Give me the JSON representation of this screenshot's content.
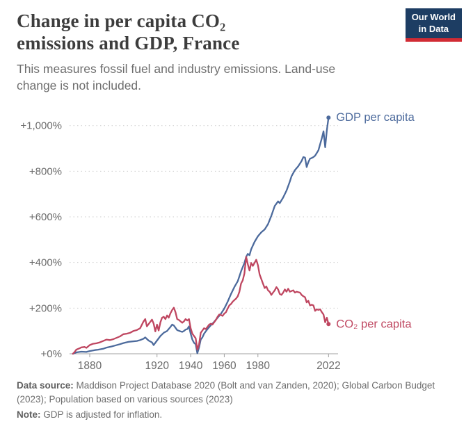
{
  "logo": {
    "line1": "Our World",
    "line2": "in Data",
    "bg": "#1d3d63",
    "stripe": "#d12b34"
  },
  "header": {
    "title_line1": "Change in per capita CO₂",
    "title_line2": "emissions and GDP, France",
    "subtitle_line1": "This measures fossil fuel and industry emissions. Land-use",
    "subtitle_line2": "change is not included."
  },
  "footer": {
    "source_label": "Data source:",
    "source_text": " Maddison Project Database 2020 (Bolt and van Zanden, 2020); Global Carbon Budget (2023); Population based on various sources (2023)",
    "note_label": "Note:",
    "note_text": " GDP is adjusted for inflation."
  },
  "chart_data": {
    "type": "line",
    "title": "Change in per capita CO₂ emissions and GDP, France",
    "xlabel": "",
    "ylabel": "",
    "grid": "horizontal-dotted",
    "legend": "inline-end-labels",
    "xlim": [
      1868,
      2026
    ],
    "ylim": [
      0,
      1060
    ],
    "yticks": [
      {
        "v": 0,
        "label": "+0%"
      },
      {
        "v": 200,
        "label": "+200%"
      },
      {
        "v": 400,
        "label": "+400%"
      },
      {
        "v": 600,
        "label": "+600%"
      },
      {
        "v": 800,
        "label": "+800%"
      },
      {
        "v": 1000,
        "label": "+1,000%"
      }
    ],
    "xticks": [
      {
        "v": 1880,
        "label": "1880"
      },
      {
        "v": 1920,
        "label": "1920"
      },
      {
        "v": 1940,
        "label": "1940"
      },
      {
        "v": 1960,
        "label": "1960"
      },
      {
        "v": 1980,
        "label": "1980"
      },
      {
        "v": 2022,
        "label": "2022"
      }
    ],
    "series": [
      {
        "name": "GDP per capita",
        "color": "#4c6a9c",
        "points": [
          [
            1870,
            0
          ],
          [
            1872,
            6
          ],
          [
            1875,
            9
          ],
          [
            1878,
            8
          ],
          [
            1880,
            12
          ],
          [
            1883,
            16
          ],
          [
            1885,
            18
          ],
          [
            1888,
            22
          ],
          [
            1890,
            27
          ],
          [
            1893,
            32
          ],
          [
            1895,
            36
          ],
          [
            1898,
            42
          ],
          [
            1900,
            47
          ],
          [
            1903,
            52
          ],
          [
            1905,
            54
          ],
          [
            1908,
            56
          ],
          [
            1910,
            60
          ],
          [
            1912,
            66
          ],
          [
            1913,
            72
          ],
          [
            1915,
            58
          ],
          [
            1917,
            50
          ],
          [
            1918,
            38
          ],
          [
            1919,
            48
          ],
          [
            1920,
            58
          ],
          [
            1922,
            78
          ],
          [
            1924,
            92
          ],
          [
            1926,
            100
          ],
          [
            1928,
            118
          ],
          [
            1929,
            128
          ],
          [
            1930,
            124
          ],
          [
            1932,
            104
          ],
          [
            1934,
            98
          ],
          [
            1935,
            96
          ],
          [
            1936,
            100
          ],
          [
            1937,
            106
          ],
          [
            1938,
            108
          ],
          [
            1939,
            120
          ],
          [
            1940,
            88
          ],
          [
            1941,
            62
          ],
          [
            1942,
            48
          ],
          [
            1943,
            42
          ],
          [
            1944,
            2
          ],
          [
            1945,
            28
          ],
          [
            1946,
            62
          ],
          [
            1947,
            72
          ],
          [
            1948,
            88
          ],
          [
            1949,
            98
          ],
          [
            1950,
            108
          ],
          [
            1952,
            125
          ],
          [
            1954,
            140
          ],
          [
            1956,
            158
          ],
          [
            1958,
            175
          ],
          [
            1960,
            198
          ],
          [
            1962,
            228
          ],
          [
            1964,
            262
          ],
          [
            1966,
            292
          ],
          [
            1968,
            318
          ],
          [
            1970,
            362
          ],
          [
            1972,
            398
          ],
          [
            1973,
            425
          ],
          [
            1974,
            438
          ],
          [
            1975,
            432
          ],
          [
            1976,
            458
          ],
          [
            1978,
            490
          ],
          [
            1980,
            515
          ],
          [
            1982,
            532
          ],
          [
            1984,
            545
          ],
          [
            1986,
            568
          ],
          [
            1988,
            605
          ],
          [
            1990,
            648
          ],
          [
            1992,
            668
          ],
          [
            1993,
            660
          ],
          [
            1995,
            685
          ],
          [
            1997,
            715
          ],
          [
            1999,
            755
          ],
          [
            2000,
            778
          ],
          [
            2002,
            805
          ],
          [
            2004,
            822
          ],
          [
            2006,
            845
          ],
          [
            2007,
            862
          ],
          [
            2008,
            860
          ],
          [
            2009,
            818
          ],
          [
            2010,
            840
          ],
          [
            2011,
            855
          ],
          [
            2012,
            858
          ],
          [
            2013,
            862
          ],
          [
            2014,
            868
          ],
          [
            2015,
            880
          ],
          [
            2016,
            892
          ],
          [
            2017,
            918
          ],
          [
            2018,
            945
          ],
          [
            2019,
            975
          ],
          [
            2020,
            905
          ],
          [
            2021,
            980
          ],
          [
            2022,
            1035
          ]
        ]
      },
      {
        "name": "CO₂ per capita",
        "color": "#bf4660",
        "points": [
          [
            1870,
            0
          ],
          [
            1871,
            8
          ],
          [
            1872,
            18
          ],
          [
            1874,
            24
          ],
          [
            1875,
            28
          ],
          [
            1877,
            30
          ],
          [
            1878,
            26
          ],
          [
            1880,
            38
          ],
          [
            1882,
            44
          ],
          [
            1884,
            46
          ],
          [
            1886,
            50
          ],
          [
            1888,
            56
          ],
          [
            1890,
            62
          ],
          [
            1892,
            60
          ],
          [
            1894,
            64
          ],
          [
            1896,
            70
          ],
          [
            1898,
            76
          ],
          [
            1900,
            86
          ],
          [
            1902,
            88
          ],
          [
            1904,
            92
          ],
          [
            1906,
            100
          ],
          [
            1908,
            104
          ],
          [
            1910,
            112
          ],
          [
            1912,
            142
          ],
          [
            1913,
            152
          ],
          [
            1914,
            120
          ],
          [
            1916,
            140
          ],
          [
            1917,
            150
          ],
          [
            1918,
            132
          ],
          [
            1919,
            98
          ],
          [
            1920,
            128
          ],
          [
            1921,
            102
          ],
          [
            1922,
            138
          ],
          [
            1923,
            158
          ],
          [
            1924,
            162
          ],
          [
            1925,
            152
          ],
          [
            1926,
            168
          ],
          [
            1927,
            158
          ],
          [
            1928,
            178
          ],
          [
            1929,
            192
          ],
          [
            1930,
            202
          ],
          [
            1931,
            182
          ],
          [
            1932,
            152
          ],
          [
            1933,
            148
          ],
          [
            1934,
            142
          ],
          [
            1935,
            136
          ],
          [
            1936,
            142
          ],
          [
            1937,
            152
          ],
          [
            1938,
            146
          ],
          [
            1939,
            152
          ],
          [
            1940,
            112
          ],
          [
            1941,
            88
          ],
          [
            1942,
            78
          ],
          [
            1943,
            68
          ],
          [
            1944,
            18
          ],
          [
            1945,
            42
          ],
          [
            1946,
            92
          ],
          [
            1947,
            102
          ],
          [
            1948,
            112
          ],
          [
            1949,
            108
          ],
          [
            1950,
            118
          ],
          [
            1951,
            128
          ],
          [
            1952,
            132
          ],
          [
            1953,
            128
          ],
          [
            1954,
            138
          ],
          [
            1955,
            148
          ],
          [
            1956,
            162
          ],
          [
            1957,
            172
          ],
          [
            1958,
            170
          ],
          [
            1959,
            166
          ],
          [
            1960,
            176
          ],
          [
            1961,
            182
          ],
          [
            1962,
            198
          ],
          [
            1963,
            212
          ],
          [
            1964,
            218
          ],
          [
            1965,
            228
          ],
          [
            1966,
            235
          ],
          [
            1967,
            242
          ],
          [
            1968,
            252
          ],
          [
            1969,
            272
          ],
          [
            1970,
            308
          ],
          [
            1971,
            322
          ],
          [
            1972,
            352
          ],
          [
            1973,
            425
          ],
          [
            1974,
            392
          ],
          [
            1975,
            365
          ],
          [
            1976,
            398
          ],
          [
            1977,
            385
          ],
          [
            1978,
            398
          ],
          [
            1979,
            412
          ],
          [
            1980,
            388
          ],
          [
            1981,
            348
          ],
          [
            1982,
            328
          ],
          [
            1983,
            308
          ],
          [
            1984,
            288
          ],
          [
            1985,
            295
          ],
          [
            1986,
            278
          ],
          [
            1987,
            272
          ],
          [
            1988,
            258
          ],
          [
            1989,
            268
          ],
          [
            1990,
            278
          ],
          [
            1991,
            292
          ],
          [
            1992,
            282
          ],
          [
            1993,
            262
          ],
          [
            1994,
            258
          ],
          [
            1995,
            268
          ],
          [
            1996,
            282
          ],
          [
            1997,
            272
          ],
          [
            1998,
            285
          ],
          [
            1999,
            272
          ],
          [
            2000,
            275
          ],
          [
            2001,
            278
          ],
          [
            2002,
            268
          ],
          [
            2003,
            272
          ],
          [
            2004,
            270
          ],
          [
            2005,
            268
          ],
          [
            2006,
            258
          ],
          [
            2007,
            252
          ],
          [
            2008,
            248
          ],
          [
            2009,
            225
          ],
          [
            2010,
            232
          ],
          [
            2011,
            212
          ],
          [
            2012,
            215
          ],
          [
            2013,
            212
          ],
          [
            2014,
            188
          ],
          [
            2015,
            195
          ],
          [
            2016,
            192
          ],
          [
            2017,
            195
          ],
          [
            2018,
            182
          ],
          [
            2019,
            172
          ],
          [
            2020,
            138
          ],
          [
            2021,
            158
          ],
          [
            2022,
            130
          ]
        ]
      }
    ]
  }
}
